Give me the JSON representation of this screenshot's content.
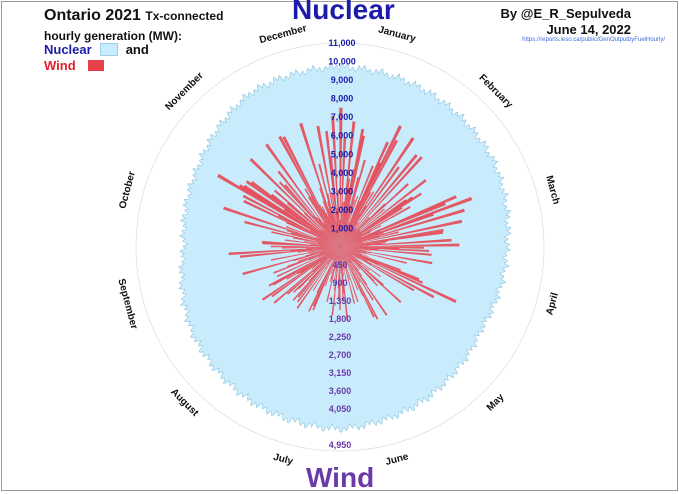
{
  "header": {
    "title_main": "Ontario 2021",
    "title_rest": "Tx-connected",
    "title_line2": "hourly generation (MW):",
    "legend_nuclear_label": "Nuclear",
    "legend_and": "and",
    "legend_wind_label": "Wind",
    "byline": "By @E_R_Sepulveda",
    "date": "June 14, 2022",
    "url": "https://reports.ieso.ca/public/GenOutputbyFuelHourly/"
  },
  "colors": {
    "nuclear_fill": "#c8ecfb",
    "nuclear_legend_text": "#1c1caa",
    "wind_fill": "#e8404b",
    "wind_legend_text": "#e0202c",
    "nuclear_scale_text": "#1c1caa",
    "wind_scale_text": "#6a3aa8"
  },
  "chart_data": {
    "type": "radial",
    "title": "Ontario 2021 Tx-connected hourly generation (MW):",
    "nuclear_axis_title": "Nuclear",
    "wind_axis_title": "Wind",
    "months": [
      "January",
      "February",
      "March",
      "April",
      "May",
      "June",
      "July",
      "August",
      "September",
      "October",
      "November",
      "December"
    ],
    "nuclear_ticks": [
      "1,000",
      "2,000",
      "3,000",
      "4,000",
      "5,000",
      "6,000",
      "7,000",
      "8,000",
      "9,000",
      "10,000",
      "11,000"
    ],
    "wind_ticks": [
      "450",
      "900",
      "1,350",
      "1,800",
      "2,250",
      "2,700",
      "3,150",
      "3,600",
      "4,050",
      "4,950"
    ],
    "nuclear_range": [
      0,
      11000
    ],
    "wind_range": [
      0,
      4950
    ],
    "nuclear_monthly_typical_mw": [
      9700,
      9600,
      9500,
      9000,
      8800,
      9400,
      9800,
      9600,
      9200,
      8400,
      8800,
      9600
    ],
    "wind_peak_mw_by_month": [
      3900,
      3800,
      3500,
      3300,
      2200,
      2000,
      2000,
      2300,
      2800,
      3300,
      3600,
      3900
    ],
    "grid": true
  }
}
